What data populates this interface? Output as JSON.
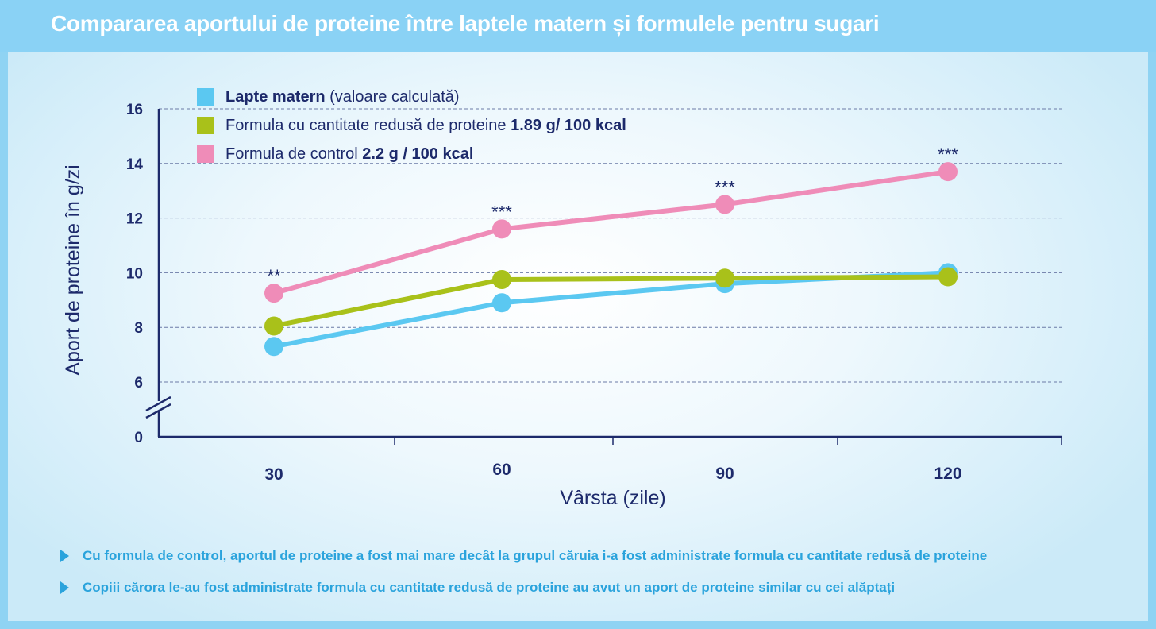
{
  "title": "Compararea aportului de proteine între laptele matern și formulele pentru sugari",
  "chart_data": {
    "type": "line",
    "x": [
      30,
      60,
      90,
      120
    ],
    "xlabel": "Vârsta (zile)",
    "ylabel": "Aport de proteine în g/zi",
    "yticks": [
      0,
      6,
      8,
      10,
      12,
      14,
      16
    ],
    "ylim": [
      6,
      16
    ],
    "axis_break": true,
    "grid": "horizontal dashed",
    "legend_position": "top-left",
    "series": [
      {
        "name": "Lapte matern",
        "name_suffix": "(valoare calculată)",
        "color": "#5bc8f1",
        "values": [
          7.3,
          8.9,
          9.6,
          10.0
        ]
      },
      {
        "name": "Formula cu cantitate redusă de proteine",
        "name_suffix": "1.89 g/ 100 kcal",
        "color": "#a9c11a",
        "values": [
          8.05,
          9.75,
          9.8,
          9.85
        ]
      },
      {
        "name": "Formula de control",
        "name_suffix": "2.2 g / 100 kcal",
        "color": "#ef8cb8",
        "values": [
          9.25,
          11.6,
          12.5,
          13.7
        ]
      }
    ],
    "annotations": [
      {
        "x": 30,
        "text": "**"
      },
      {
        "x": 60,
        "text": "***"
      },
      {
        "x": 90,
        "text": "***"
      },
      {
        "x": 120,
        "text": "***"
      }
    ]
  },
  "notes": [
    "Cu formula de control, aportul de proteine a fost mai mare decât la grupul căruia i-a fost administrate formula cu cantitate redusă de proteine",
    "Copiii cărora le-au fost administrate formula cu cantitate redusă de proteine au avut un aport de proteine similar cu cei alăptați"
  ],
  "colors": {
    "header": "#8ad2f5",
    "axis": "#1d2a6b",
    "note_text": "#2aa3dc"
  }
}
